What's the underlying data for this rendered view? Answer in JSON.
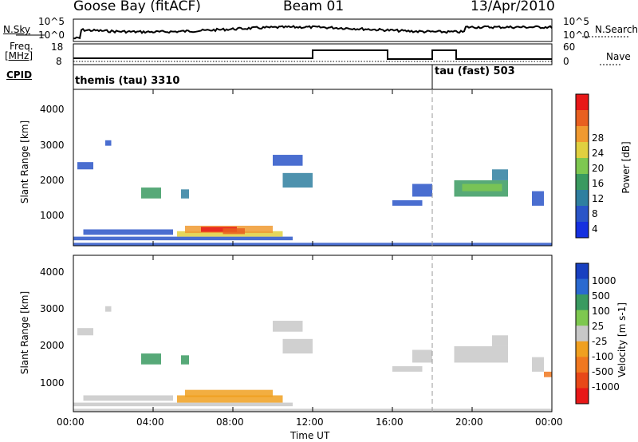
{
  "header": {
    "station": "Goose Bay (fitACF)",
    "beam": "Beam 01",
    "date": "13/Apr/2010"
  },
  "left_labels": {
    "nsky": "N.Sky",
    "freq_line1": "Freq.",
    "freq_line2": "[MHz]",
    "cpid": "CPID"
  },
  "right_labels": {
    "nsearch": "N.Search",
    "nave": "Nave"
  },
  "strip_ticks": {
    "nsky_top": "10^5",
    "nsky_bottom": "10^0",
    "nsearch_top": "10^5",
    "nsearch_bottom": "10^0",
    "freq_top": "18",
    "freq_bottom": "8",
    "nave_top": "60",
    "nave_bottom": "0"
  },
  "cpid_modes": [
    {
      "label": "themis (tau) 3310",
      "start_hour": 0.0
    },
    {
      "label": "tau (fast) 503",
      "start_hour": 18.0
    }
  ],
  "colors": {
    "power": [
      "#1530e0",
      "#2a55c8",
      "#2f7fa0",
      "#3a9a60",
      "#7ec850",
      "#e0d040",
      "#f09a30",
      "#e86020",
      "#e81818"
    ],
    "velocity": [
      "#1840c0",
      "#2a6ad0",
      "#3a9a60",
      "#7ec850",
      "#c8c8c8",
      "#f0a020",
      "#f07820",
      "#e84818",
      "#e81818"
    ]
  },
  "chart_data": [
    {
      "type": "heatmap",
      "name": "power",
      "xlabel": "",
      "ylabel": "Slant Range [km]",
      "xlim": [
        0,
        24
      ],
      "ylim": [
        200,
        4500
      ],
      "yticks": [
        "1000",
        "2000",
        "3000",
        "4000"
      ],
      "colorbar_label": "Power [dB]",
      "colorbar_ticks": [
        "4",
        "8",
        "12",
        "16",
        "20",
        "24",
        "28"
      ],
      "grid": false,
      "cells": [
        {
          "t0": 0.2,
          "t1": 1.0,
          "r0": 2300,
          "r1": 2500,
          "c": 1
        },
        {
          "t0": 1.6,
          "t1": 1.9,
          "r0": 2950,
          "r1": 3100,
          "c": 1
        },
        {
          "t0": 3.4,
          "t1": 4.4,
          "r0": 1500,
          "r1": 1800,
          "c": 3
        },
        {
          "t0": 5.4,
          "t1": 5.8,
          "r0": 1500,
          "r1": 1750,
          "c": 2
        },
        {
          "t0": 0.0,
          "t1": 11.0,
          "r0": 350,
          "r1": 450,
          "c": 1
        },
        {
          "t0": 0.5,
          "t1": 5.0,
          "r0": 500,
          "r1": 650,
          "c": 1
        },
        {
          "t0": 5.2,
          "t1": 10.5,
          "r0": 450,
          "r1": 600,
          "c": 5
        },
        {
          "t0": 5.6,
          "t1": 10.0,
          "r0": 550,
          "r1": 750,
          "c": 6
        },
        {
          "t0": 6.4,
          "t1": 8.2,
          "r0": 580,
          "r1": 720,
          "c": 8
        },
        {
          "t0": 7.5,
          "t1": 8.6,
          "r0": 520,
          "r1": 680,
          "c": 7
        },
        {
          "t0": 10.0,
          "t1": 11.5,
          "r0": 2400,
          "r1": 2700,
          "c": 1
        },
        {
          "t0": 10.5,
          "t1": 12.0,
          "r0": 1800,
          "r1": 2200,
          "c": 2
        },
        {
          "t0": 16.0,
          "t1": 17.5,
          "r0": 1300,
          "r1": 1450,
          "c": 1
        },
        {
          "t0": 17.0,
          "t1": 18.0,
          "r0": 1550,
          "r1": 1900,
          "c": 1
        },
        {
          "t0": 19.1,
          "t1": 21.8,
          "r0": 1550,
          "r1": 2000,
          "c": 3
        },
        {
          "t0": 19.5,
          "t1": 21.5,
          "r0": 1700,
          "r1": 1900,
          "c": 4
        },
        {
          "t0": 21.0,
          "t1": 21.8,
          "r0": 2000,
          "r1": 2300,
          "c": 2
        },
        {
          "t0": 23.0,
          "t1": 23.6,
          "r0": 1300,
          "r1": 1700,
          "c": 1
        },
        {
          "t0": 0.0,
          "t1": 24.0,
          "r0": 200,
          "r1": 280,
          "c": 1
        }
      ]
    },
    {
      "type": "heatmap",
      "name": "velocity",
      "xlabel": "Time UT",
      "ylabel": "Slant Range [km]",
      "xlim": [
        0,
        24
      ],
      "ylim": [
        200,
        4500
      ],
      "xticks": [
        "00:00",
        "04:00",
        "08:00",
        "12:00",
        "16:00",
        "20:00",
        "00:00"
      ],
      "yticks": [
        "1000",
        "2000",
        "3000",
        "4000"
      ],
      "colorbar_label": "Velocity [m s-1]",
      "colorbar_ticks": [
        "1000",
        "500",
        "100",
        "25",
        "-25",
        "-100",
        "-500",
        "-1000"
      ],
      "grid": false,
      "cells": [
        {
          "t0": 0.2,
          "t1": 1.0,
          "r0": 2300,
          "r1": 2500,
          "c": 4
        },
        {
          "t0": 1.6,
          "t1": 1.9,
          "r0": 2950,
          "r1": 3100,
          "c": 4
        },
        {
          "t0": 3.4,
          "t1": 4.4,
          "r0": 1500,
          "r1": 1800,
          "c": 2
        },
        {
          "t0": 5.4,
          "t1": 5.8,
          "r0": 1500,
          "r1": 1750,
          "c": 2
        },
        {
          "t0": 0.0,
          "t1": 11.0,
          "r0": 350,
          "r1": 450,
          "c": 4
        },
        {
          "t0": 0.5,
          "t1": 5.0,
          "r0": 500,
          "r1": 650,
          "c": 4
        },
        {
          "t0": 5.2,
          "t1": 10.5,
          "r0": 450,
          "r1": 650,
          "c": 5
        },
        {
          "t0": 5.6,
          "t1": 10.0,
          "r0": 600,
          "r1": 800,
          "c": 5
        },
        {
          "t0": 10.0,
          "t1": 11.5,
          "r0": 2400,
          "r1": 2700,
          "c": 4
        },
        {
          "t0": 10.5,
          "t1": 12.0,
          "r0": 1800,
          "r1": 2200,
          "c": 4
        },
        {
          "t0": 16.0,
          "t1": 17.5,
          "r0": 1300,
          "r1": 1450,
          "c": 4
        },
        {
          "t0": 17.0,
          "t1": 18.0,
          "r0": 1550,
          "r1": 1900,
          "c": 4
        },
        {
          "t0": 19.1,
          "t1": 21.8,
          "r0": 1550,
          "r1": 2000,
          "c": 4
        },
        {
          "t0": 21.0,
          "t1": 21.8,
          "r0": 2000,
          "r1": 2300,
          "c": 4
        },
        {
          "t0": 23.0,
          "t1": 23.6,
          "r0": 1300,
          "r1": 1700,
          "c": 4
        },
        {
          "t0": 23.6,
          "t1": 24.0,
          "r0": 1150,
          "r1": 1300,
          "c": 6
        },
        {
          "t0": 0.0,
          "t1": 24.0,
          "r0": 200,
          "r1": 280,
          "c": 4
        }
      ]
    }
  ]
}
